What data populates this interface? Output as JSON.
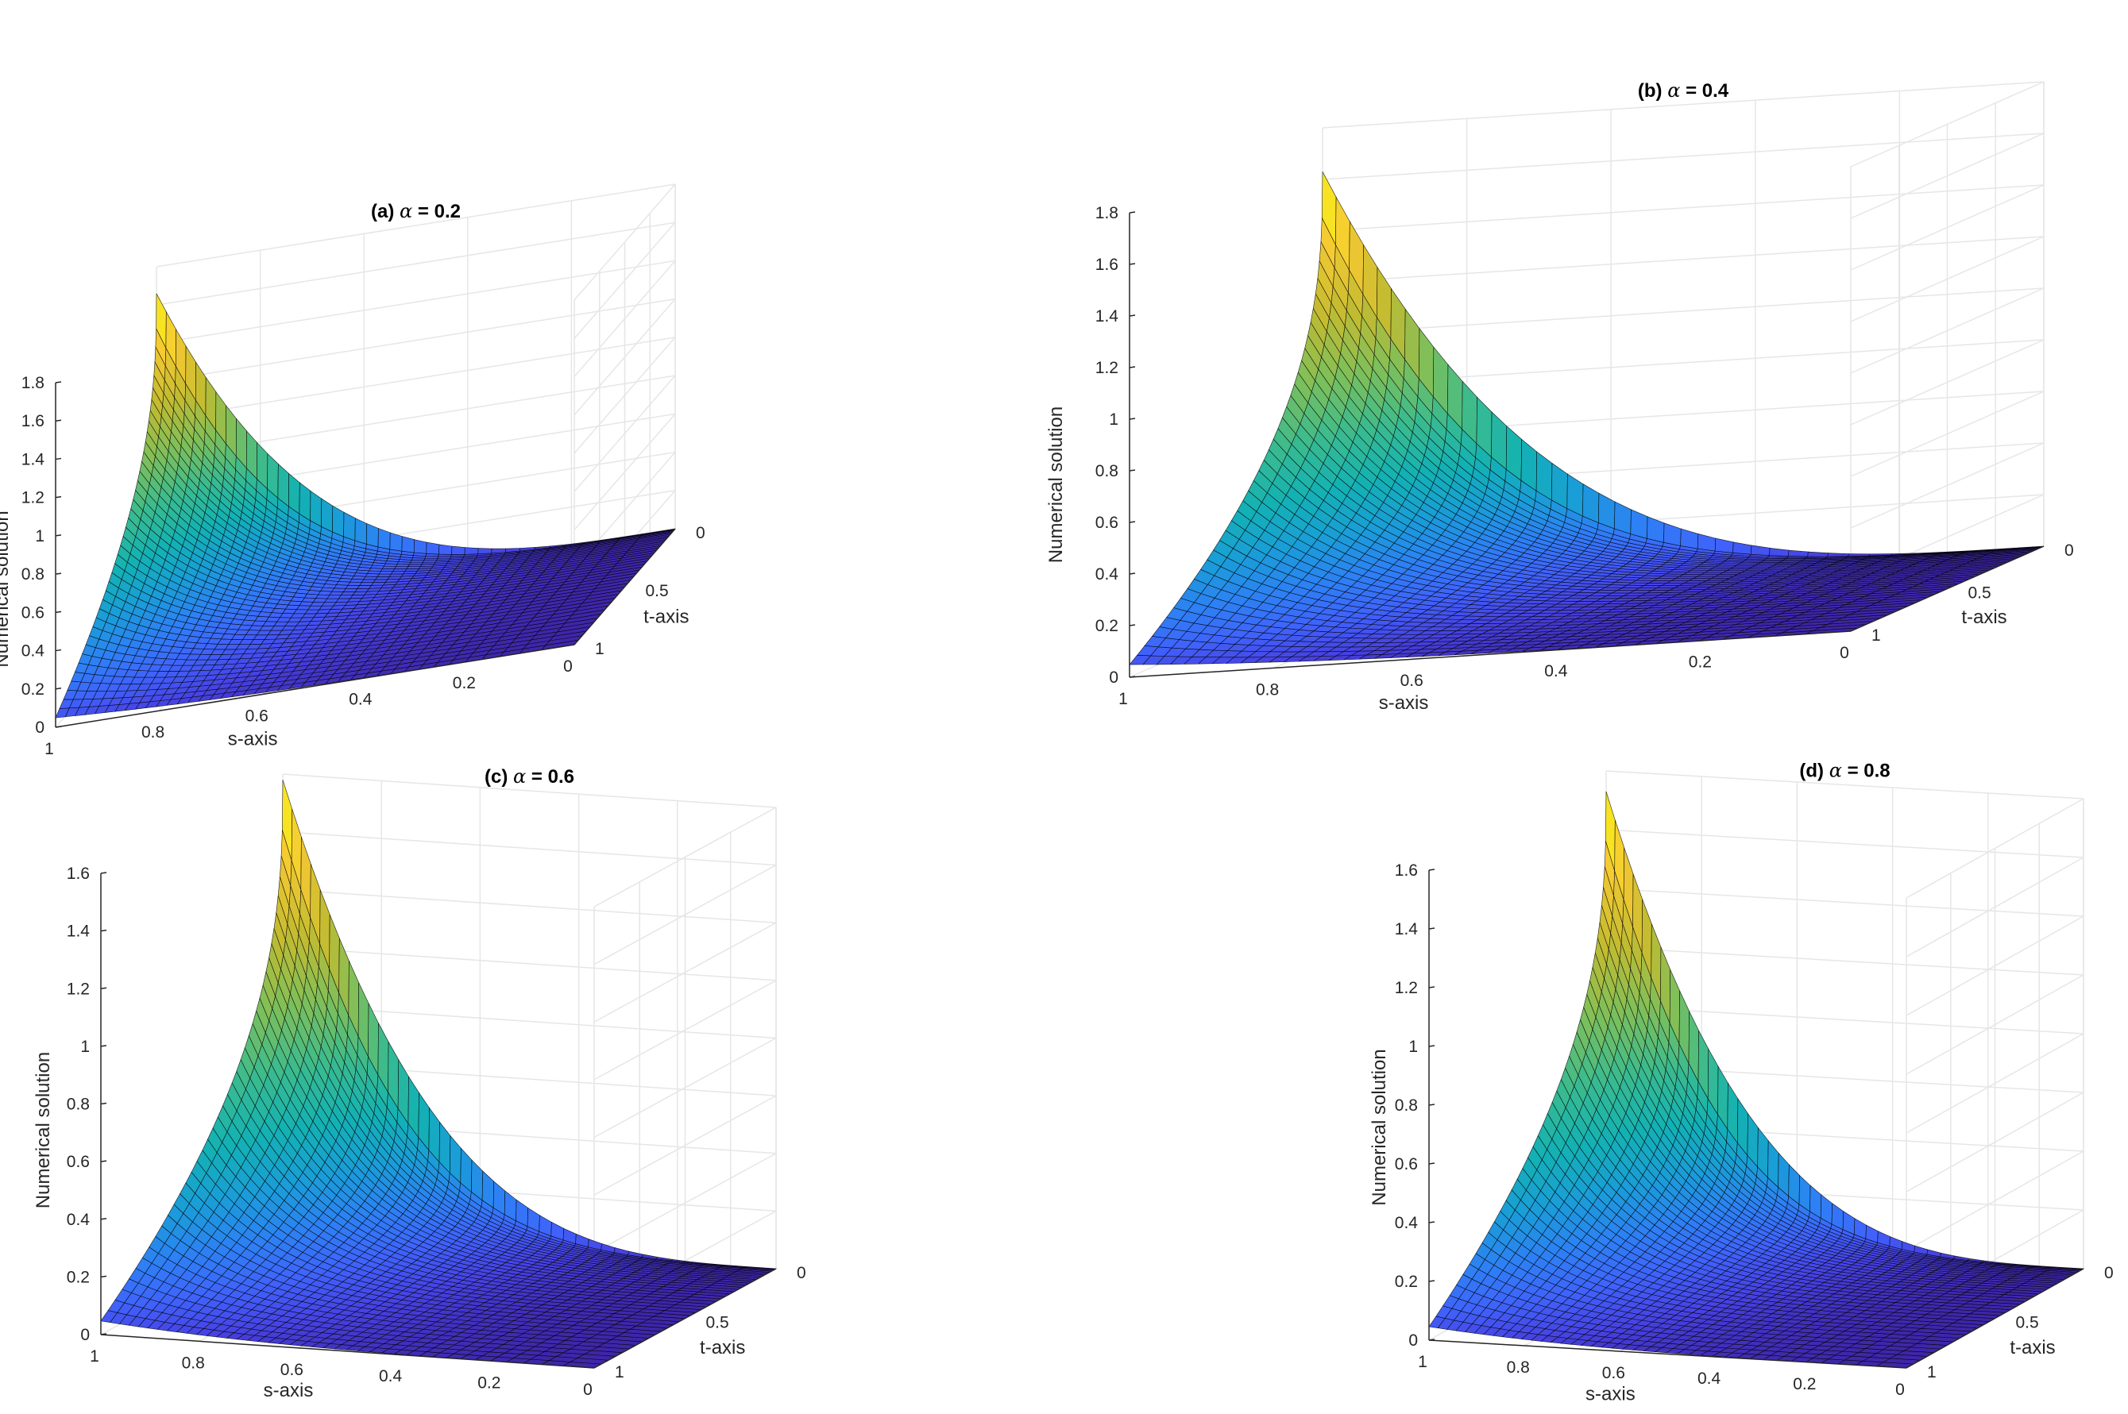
{
  "chart_data": [
    {
      "type": "surface",
      "panel": "a",
      "title_prefix": "(a) ",
      "title_symbol": "α",
      "title_suffix": " = 0.2",
      "alpha": 0.2,
      "xlabel": "s-axis",
      "ylabel": "t-axis",
      "zlabel": "Numerical solution",
      "s_range": [
        0,
        1
      ],
      "t_range": [
        0,
        1
      ],
      "z_range": [
        0,
        1.8
      ],
      "s_ticks": [
        "1",
        "0.8",
        "0.6",
        "0.4",
        "0.2",
        "0"
      ],
      "t_ticks": [
        "0",
        "0.5",
        "1"
      ],
      "z_ticks": [
        "0",
        "0.2",
        "0.4",
        "0.6",
        "0.8",
        "1",
        "1.2",
        "1.4",
        "1.6",
        "1.8"
      ],
      "peak": 1.66
    },
    {
      "type": "surface",
      "panel": "b",
      "title_prefix": "(b) ",
      "title_symbol": "α",
      "title_suffix": " = 0.4",
      "alpha": 0.4,
      "xlabel": "s-axis",
      "ylabel": "t-axis",
      "zlabel": "Numerical solution",
      "s_range": [
        0,
        1
      ],
      "t_range": [
        0,
        1
      ],
      "z_range": [
        0,
        1.8
      ],
      "s_ticks": [
        "1",
        "0.8",
        "0.6",
        "0.4",
        "0.2",
        "0"
      ],
      "t_ticks": [
        "0",
        "0.5",
        "1"
      ],
      "z_ticks": [
        "0",
        "0.2",
        "0.4",
        "0.6",
        "0.8",
        "1",
        "1.2",
        "1.4",
        "1.6",
        "1.8"
      ],
      "peak": 1.63
    },
    {
      "type": "surface",
      "panel": "c",
      "title_prefix": "(c) ",
      "title_symbol": "α",
      "title_suffix": " = 0.6",
      "alpha": 0.6,
      "xlabel": "s-axis",
      "ylabel": "t-axis",
      "zlabel": "Numerical solution",
      "s_range": [
        0,
        1
      ],
      "t_range": [
        0,
        1
      ],
      "z_range": [
        0,
        1.6
      ],
      "s_ticks": [
        "1",
        "0.8",
        "0.6",
        "0.4",
        "0.2",
        "0"
      ],
      "t_ticks": [
        "0",
        "0.5",
        "1"
      ],
      "z_ticks": [
        "0",
        "0.2",
        "0.4",
        "0.6",
        "0.8",
        "1",
        "1.2",
        "1.4",
        "1.6"
      ],
      "peak": 1.58
    },
    {
      "type": "surface",
      "panel": "d",
      "title_prefix": "(d) ",
      "title_symbol": "α",
      "title_suffix": " = 0.8",
      "alpha": 0.8,
      "xlabel": "s-axis",
      "ylabel": "t-axis",
      "zlabel": "Numerical solution",
      "s_range": [
        0,
        1
      ],
      "t_range": [
        0,
        1
      ],
      "z_range": [
        0,
        1.6
      ],
      "s_ticks": [
        "1",
        "0.8",
        "0.6",
        "0.4",
        "0.2",
        "0"
      ],
      "t_ticks": [
        "0",
        "0.5",
        "1"
      ],
      "z_ticks": [
        "0",
        "0.2",
        "0.4",
        "0.6",
        "0.8",
        "1",
        "1.2",
        "1.4",
        "1.6"
      ],
      "peak": 1.53
    }
  ],
  "colors": {
    "colormap": [
      "#3e26a8",
      "#4743e5",
      "#3f64fc",
      "#2d81f4",
      "#1a9dd8",
      "#13b1b4",
      "#3abb8f",
      "#7ebf5a",
      "#c2bb31",
      "#f6c932",
      "#f9fb15"
    ],
    "mesh": "#000000",
    "grid": "#e6e6e6",
    "axis": "#262626"
  }
}
